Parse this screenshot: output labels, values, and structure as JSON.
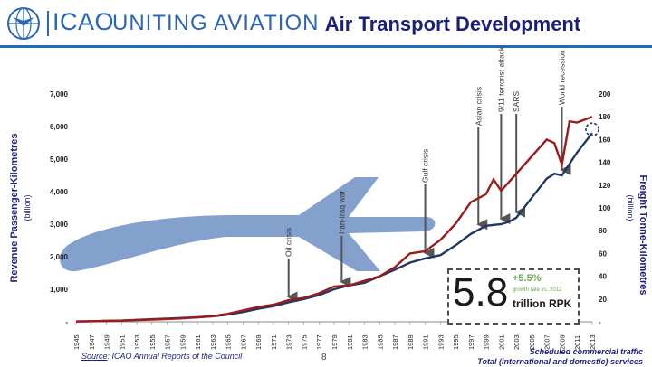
{
  "header": {
    "logo_text": "ICAO",
    "tagline": "UNITING AVIATION",
    "title": "Air Transport Development"
  },
  "colors": {
    "brand_blue": "#2a66b5",
    "title_navy": "#1a1f78",
    "rpk_series": "#1f3864",
    "ftk_series": "#9b1c1c",
    "growth_green": "#6aa84f"
  },
  "chart_data": {
    "type": "line",
    "left_axis": {
      "title": "Revenue Passenger-Kilometres",
      "subtitle": "(billion)",
      "ticks": [
        "-",
        "1,000",
        "2,000",
        "3,000",
        "4,000",
        "5,000",
        "6,000",
        "7,000"
      ],
      "range": [
        0,
        7000
      ]
    },
    "right_axis": {
      "title": "Freight Tonne-Kilometres",
      "subtitle": "(billion)",
      "ticks": [
        "-",
        "20",
        "40",
        "60",
        "80",
        "100",
        "120",
        "140",
        "160",
        "180",
        "200"
      ],
      "range": [
        0,
        200
      ]
    },
    "x_categories": [
      "1945",
      "1947",
      "1949",
      "1951",
      "1953",
      "1955",
      "1957",
      "1959",
      "1961",
      "1963",
      "1965",
      "1967",
      "1969",
      "1971",
      "1973",
      "1975",
      "1977",
      "1979",
      "1981",
      "1983",
      "1985",
      "1987",
      "1989",
      "1991",
      "1993",
      "1995",
      "1997",
      "1999",
      "2001",
      "2003",
      "2005",
      "2007",
      "2009",
      "2011",
      "2013"
    ],
    "series": [
      {
        "name": "Scheduled commercial traffic - RPK",
        "axis": "left",
        "x": [
          1945,
          1947,
          1949,
          1951,
          1953,
          1955,
          1957,
          1959,
          1961,
          1963,
          1965,
          1967,
          1969,
          1971,
          1973,
          1975,
          1977,
          1979,
          1981,
          1983,
          1985,
          1987,
          1989,
          1991,
          1993,
          1995,
          1997,
          1999,
          2001,
          2002,
          2003,
          2005,
          2007,
          2008,
          2009,
          2011,
          2013
        ],
        "values": [
          10,
          20,
          30,
          40,
          60,
          80,
          100,
          120,
          140,
          170,
          220,
          300,
          400,
          480,
          600,
          700,
          820,
          1000,
          1120,
          1200,
          1400,
          1600,
          1820,
          1950,
          2050,
          2350,
          2700,
          2950,
          3000,
          3070,
          3200,
          3800,
          4400,
          4550,
          4500,
          5200,
          5800
        ]
      },
      {
        "name": "Scheduled commercial traffic - FTK",
        "axis": "right",
        "x": [
          1945,
          1947,
          1949,
          1951,
          1953,
          1955,
          1957,
          1959,
          1961,
          1963,
          1965,
          1967,
          1969,
          1971,
          1973,
          1975,
          1977,
          1979,
          1981,
          1983,
          1985,
          1987,
          1989,
          1991,
          1993,
          1995,
          1997,
          1999,
          2000,
          2001,
          2003,
          2005,
          2007,
          2008,
          2009,
          2010,
          2011,
          2013
        ],
        "values": [
          0.2,
          0.5,
          0.8,
          1.0,
          1.5,
          2.0,
          2.5,
          3.0,
          4.0,
          5.0,
          7.0,
          10.0,
          13.0,
          15.0,
          19.0,
          21.0,
          25.0,
          31.0,
          32.0,
          36.0,
          40.0,
          48.0,
          60.0,
          62.0,
          72.0,
          86.0,
          105.0,
          112.0,
          125.0,
          115.0,
          130.0,
          145.0,
          160.0,
          157.0,
          138.0,
          176.0,
          175.0,
          180.0
        ]
      }
    ],
    "events": [
      {
        "label": "Oil crisis",
        "year": 1973
      },
      {
        "label": "Iran-Iraq war",
        "year": 1980
      },
      {
        "label": "Gulf crisis",
        "year": 1991
      },
      {
        "label": "Asian crisis",
        "year": 1998
      },
      {
        "label": "9/11 terrorist attack",
        "year": 2001
      },
      {
        "label": "SARS",
        "year": 2003
      },
      {
        "label": "World recession",
        "year": 2009
      }
    ]
  },
  "kpi": {
    "value": "5.8",
    "growth": "+5.5%",
    "growth_label": "growth rate vs. 2012",
    "unit": "trillion RPK"
  },
  "footer": {
    "source_label": "Source",
    "source_text": ": ICAO Annual Reports of the Council",
    "page_number": "8",
    "footnote_line1": "Scheduled commercial traffic",
    "footnote_line2": "Total (international and domestic) services"
  }
}
